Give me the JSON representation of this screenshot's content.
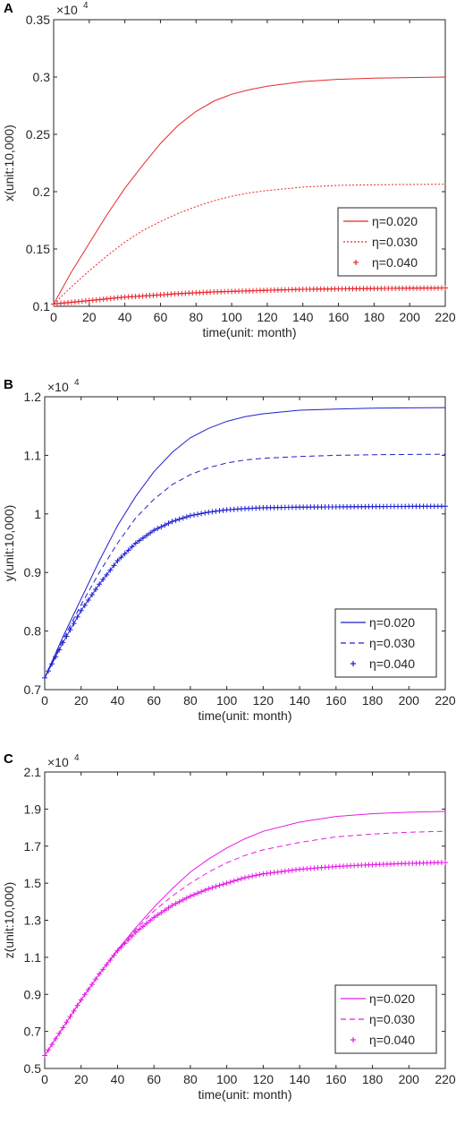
{
  "chart_data": [
    {
      "type": "line",
      "panel_label": "A",
      "xlabel": "time(unit: month)",
      "ylabel": "x(unit:10,000)",
      "exponent": {
        "base": "×10",
        "power": "4"
      },
      "xlim": [
        0,
        220
      ],
      "ylim": [
        0.1,
        0.35
      ],
      "xticks": [
        0,
        20,
        40,
        60,
        80,
        100,
        120,
        140,
        160,
        180,
        200,
        220
      ],
      "yticks": [
        0.1,
        0.15,
        0.2,
        0.25,
        0.3,
        0.35
      ],
      "ytick_labels": [
        "0.1",
        "0.15",
        "0.2",
        "0.25",
        "0.3",
        "0.35"
      ],
      "legend": "bottom-right",
      "series": [
        {
          "name": "η=0.020",
          "color": "#e8262b",
          "style": "solid",
          "x": [
            0,
            10,
            20,
            30,
            40,
            50,
            60,
            70,
            80,
            90,
            100,
            110,
            120,
            140,
            160,
            180,
            200,
            220
          ],
          "y": [
            0.102,
            0.13,
            0.155,
            0.18,
            0.203,
            0.223,
            0.242,
            0.258,
            0.27,
            0.279,
            0.285,
            0.289,
            0.292,
            0.296,
            0.298,
            0.299,
            0.2995,
            0.3
          ]
        },
        {
          "name": "η=0.030",
          "color": "#e8262b",
          "style": "dotted",
          "x": [
            0,
            10,
            20,
            30,
            40,
            50,
            60,
            70,
            80,
            90,
            100,
            110,
            120,
            140,
            160,
            180,
            200,
            220
          ],
          "y": [
            0.102,
            0.117,
            0.131,
            0.144,
            0.156,
            0.166,
            0.174,
            0.181,
            0.187,
            0.192,
            0.196,
            0.199,
            0.201,
            0.204,
            0.2055,
            0.206,
            0.2063,
            0.2065
          ]
        },
        {
          "name": "η=0.040",
          "color": "#e8262b",
          "style": "plus",
          "x": [
            0,
            10,
            20,
            30,
            40,
            50,
            60,
            70,
            80,
            90,
            100,
            110,
            120,
            140,
            160,
            180,
            200,
            220
          ],
          "y": [
            0.102,
            0.1035,
            0.105,
            0.1065,
            0.108,
            0.109,
            0.11,
            0.111,
            0.1118,
            0.1125,
            0.113,
            0.1135,
            0.114,
            0.1148,
            0.1152,
            0.1155,
            0.1158,
            0.116
          ]
        }
      ]
    },
    {
      "type": "line",
      "panel_label": "B",
      "xlabel": "time(unit: month)",
      "ylabel": "y(unit:10,000)",
      "exponent": {
        "base": "×10",
        "power": "4"
      },
      "xlim": [
        0,
        220
      ],
      "ylim": [
        0.7,
        1.2
      ],
      "xticks": [
        0,
        20,
        40,
        60,
        80,
        100,
        120,
        140,
        160,
        180,
        200,
        220
      ],
      "yticks": [
        0.7,
        0.8,
        0.9,
        1.0,
        1.1,
        1.2
      ],
      "ytick_labels": [
        "0.7",
        "0.8",
        "0.9",
        "1",
        "1.1",
        "1.2"
      ],
      "legend": "bottom-right",
      "series": [
        {
          "name": "η=0.020",
          "color": "#1f1fcf",
          "style": "solid",
          "x": [
            0,
            10,
            20,
            30,
            40,
            50,
            60,
            70,
            80,
            90,
            100,
            110,
            120,
            140,
            160,
            180,
            200,
            220
          ],
          "y": [
            0.72,
            0.79,
            0.855,
            0.92,
            0.98,
            1.03,
            1.072,
            1.105,
            1.13,
            1.146,
            1.158,
            1.166,
            1.171,
            1.177,
            1.179,
            1.1805,
            1.181,
            1.1815
          ]
        },
        {
          "name": "η=0.030",
          "color": "#1f1fcf",
          "style": "dashed",
          "x": [
            0,
            10,
            20,
            30,
            40,
            50,
            60,
            70,
            80,
            90,
            100,
            110,
            120,
            140,
            160,
            180,
            200,
            220
          ],
          "y": [
            0.72,
            0.785,
            0.845,
            0.9,
            0.95,
            0.993,
            1.025,
            1.05,
            1.067,
            1.079,
            1.087,
            1.092,
            1.095,
            1.098,
            1.1,
            1.101,
            1.1015,
            1.102
          ]
        },
        {
          "name": "η=0.040",
          "color": "#1f1fcf",
          "style": "plus",
          "x": [
            0,
            10,
            20,
            30,
            40,
            50,
            60,
            70,
            80,
            90,
            100,
            110,
            120,
            140,
            160,
            180,
            200,
            220
          ],
          "y": [
            0.72,
            0.78,
            0.835,
            0.88,
            0.92,
            0.95,
            0.972,
            0.987,
            0.997,
            1.003,
            1.007,
            1.009,
            1.0105,
            1.0115,
            1.012,
            1.0125,
            1.0128,
            1.013
          ]
        }
      ]
    },
    {
      "type": "line",
      "panel_label": "C",
      "xlabel": "time(unit: month)",
      "ylabel": "z(unit:10,000)",
      "exponent": {
        "base": "×10",
        "power": "4"
      },
      "xlim": [
        0,
        220
      ],
      "ylim": [
        0.5,
        2.1
      ],
      "xticks": [
        0,
        20,
        40,
        60,
        80,
        100,
        120,
        140,
        160,
        180,
        200,
        220
      ],
      "yticks": [
        0.5,
        0.7,
        0.9,
        1.1,
        1.3,
        1.5,
        1.7,
        1.9,
        2.1
      ],
      "ytick_labels": [
        "0.5",
        "0.7",
        "0.9",
        "1.1",
        "1.3",
        "1.5",
        "1.7",
        "1.9",
        "2.1"
      ],
      "legend": "bottom-right",
      "series": [
        {
          "name": "η=0.020",
          "color": "#e61ae6",
          "style": "solid",
          "x": [
            0,
            10,
            20,
            30,
            40,
            50,
            60,
            70,
            80,
            90,
            100,
            110,
            120,
            140,
            160,
            180,
            200,
            220
          ],
          "y": [
            0.57,
            0.72,
            0.87,
            1.01,
            1.14,
            1.26,
            1.37,
            1.47,
            1.56,
            1.63,
            1.69,
            1.74,
            1.78,
            1.83,
            1.86,
            1.875,
            1.883,
            1.887
          ]
        },
        {
          "name": "η=0.030",
          "color": "#e61ae6",
          "style": "dashed",
          "x": [
            0,
            10,
            20,
            30,
            40,
            50,
            60,
            70,
            80,
            90,
            100,
            110,
            120,
            140,
            160,
            180,
            200,
            220
          ],
          "y": [
            0.57,
            0.72,
            0.87,
            1.01,
            1.14,
            1.25,
            1.35,
            1.43,
            1.5,
            1.56,
            1.61,
            1.65,
            1.68,
            1.72,
            1.75,
            1.765,
            1.775,
            1.78
          ]
        },
        {
          "name": "η=0.040",
          "color": "#e61ae6",
          "style": "plus",
          "x": [
            0,
            10,
            20,
            30,
            40,
            50,
            60,
            70,
            80,
            90,
            100,
            110,
            120,
            140,
            160,
            180,
            200,
            220
          ],
          "y": [
            0.57,
            0.72,
            0.87,
            1.01,
            1.135,
            1.235,
            1.315,
            1.38,
            1.43,
            1.47,
            1.5,
            1.53,
            1.55,
            1.575,
            1.59,
            1.6,
            1.607,
            1.612
          ]
        }
      ]
    }
  ]
}
